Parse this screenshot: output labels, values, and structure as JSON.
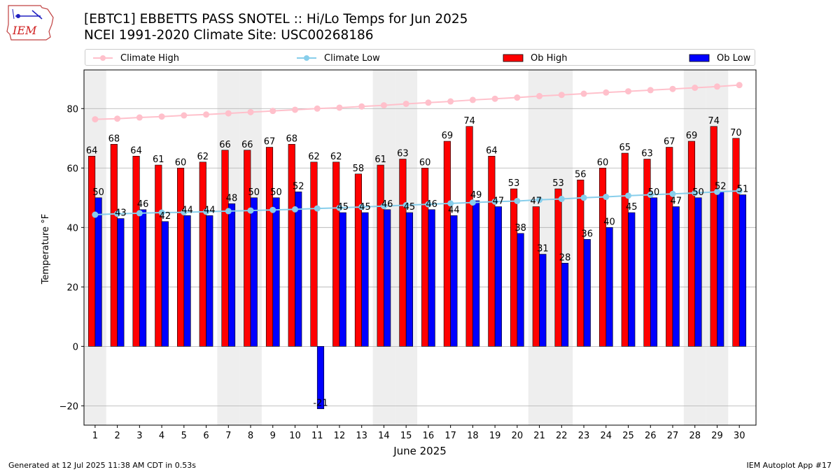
{
  "logo": {
    "text": "IEM"
  },
  "title_line1": "[EBTC1] EBBETTS PASS SNOTEL :: Hi/Lo Temps for Jun 2025",
  "title_line2": "NCEI 1991-2020 Climate Site: USC00268186",
  "footer_left": "Generated at 12 Jul 2025 11:38 AM CDT in 0.53s",
  "footer_right": "IEM Autoplot App #17",
  "colors": {
    "climate_high": "#ffc0cb",
    "climate_low": "#87ceeb",
    "ob_high": "#ff0000",
    "ob_low": "#0000ff",
    "weekend_shade": "#eeeeee",
    "grid": "#b0b0b0"
  },
  "chart_data": {
    "type": "bar",
    "xlabel": "June 2025",
    "ylabel": "Temperature °F",
    "ylim": [
      -26.5,
      93
    ],
    "yticks": [
      -20,
      0,
      20,
      40,
      60,
      80
    ],
    "grid": true,
    "legend_position": "top",
    "categories": [
      "1",
      "2",
      "3",
      "4",
      "5",
      "6",
      "7",
      "8",
      "9",
      "10",
      "11",
      "12",
      "13",
      "14",
      "15",
      "16",
      "17",
      "18",
      "19",
      "20",
      "21",
      "22",
      "23",
      "24",
      "25",
      "26",
      "27",
      "28",
      "29",
      "30"
    ],
    "shaded_days": [
      1,
      7,
      8,
      14,
      15,
      21,
      22,
      28,
      29
    ],
    "series": [
      {
        "name": "Climate High",
        "kind": "line",
        "color": "#ffc0cb",
        "values": [
          76.4,
          76.6,
          77.0,
          77.3,
          77.7,
          78.0,
          78.4,
          78.8,
          79.2,
          79.6,
          80.0,
          80.3,
          80.7,
          81.1,
          81.6,
          82.0,
          82.4,
          82.9,
          83.3,
          83.7,
          84.2,
          84.6,
          85.0,
          85.4,
          85.8,
          86.2,
          86.6,
          87.0,
          87.4,
          87.9
        ]
      },
      {
        "name": "Climate Low",
        "kind": "line",
        "color": "#87ceeb",
        "values": [
          44.3,
          44.6,
          44.8,
          45.0,
          45.1,
          45.3,
          45.5,
          45.7,
          45.9,
          46.1,
          46.4,
          46.6,
          46.9,
          47.2,
          47.5,
          47.8,
          48.1,
          48.4,
          48.7,
          48.9,
          49.3,
          49.6,
          50.0,
          50.3,
          50.7,
          51.0,
          51.3,
          51.6,
          52.0,
          52.3
        ]
      },
      {
        "name": "Ob High",
        "kind": "bar",
        "color": "#ff0000",
        "values": [
          64,
          68,
          64,
          61,
          60,
          62,
          66,
          66,
          67,
          68,
          62,
          62,
          58,
          61,
          63,
          60,
          69,
          74,
          64,
          53,
          47,
          53,
          56,
          60,
          65,
          63,
          67,
          69,
          74,
          70
        ]
      },
      {
        "name": "Ob Low",
        "kind": "bar",
        "color": "#0000ff",
        "values": [
          50,
          43,
          46,
          42,
          44,
          44,
          48,
          50,
          50,
          52,
          -21,
          45,
          45,
          46,
          45,
          46,
          44,
          49,
          47,
          38,
          31,
          28,
          36,
          40,
          45,
          50,
          47,
          50,
          52,
          51
        ]
      }
    ]
  }
}
